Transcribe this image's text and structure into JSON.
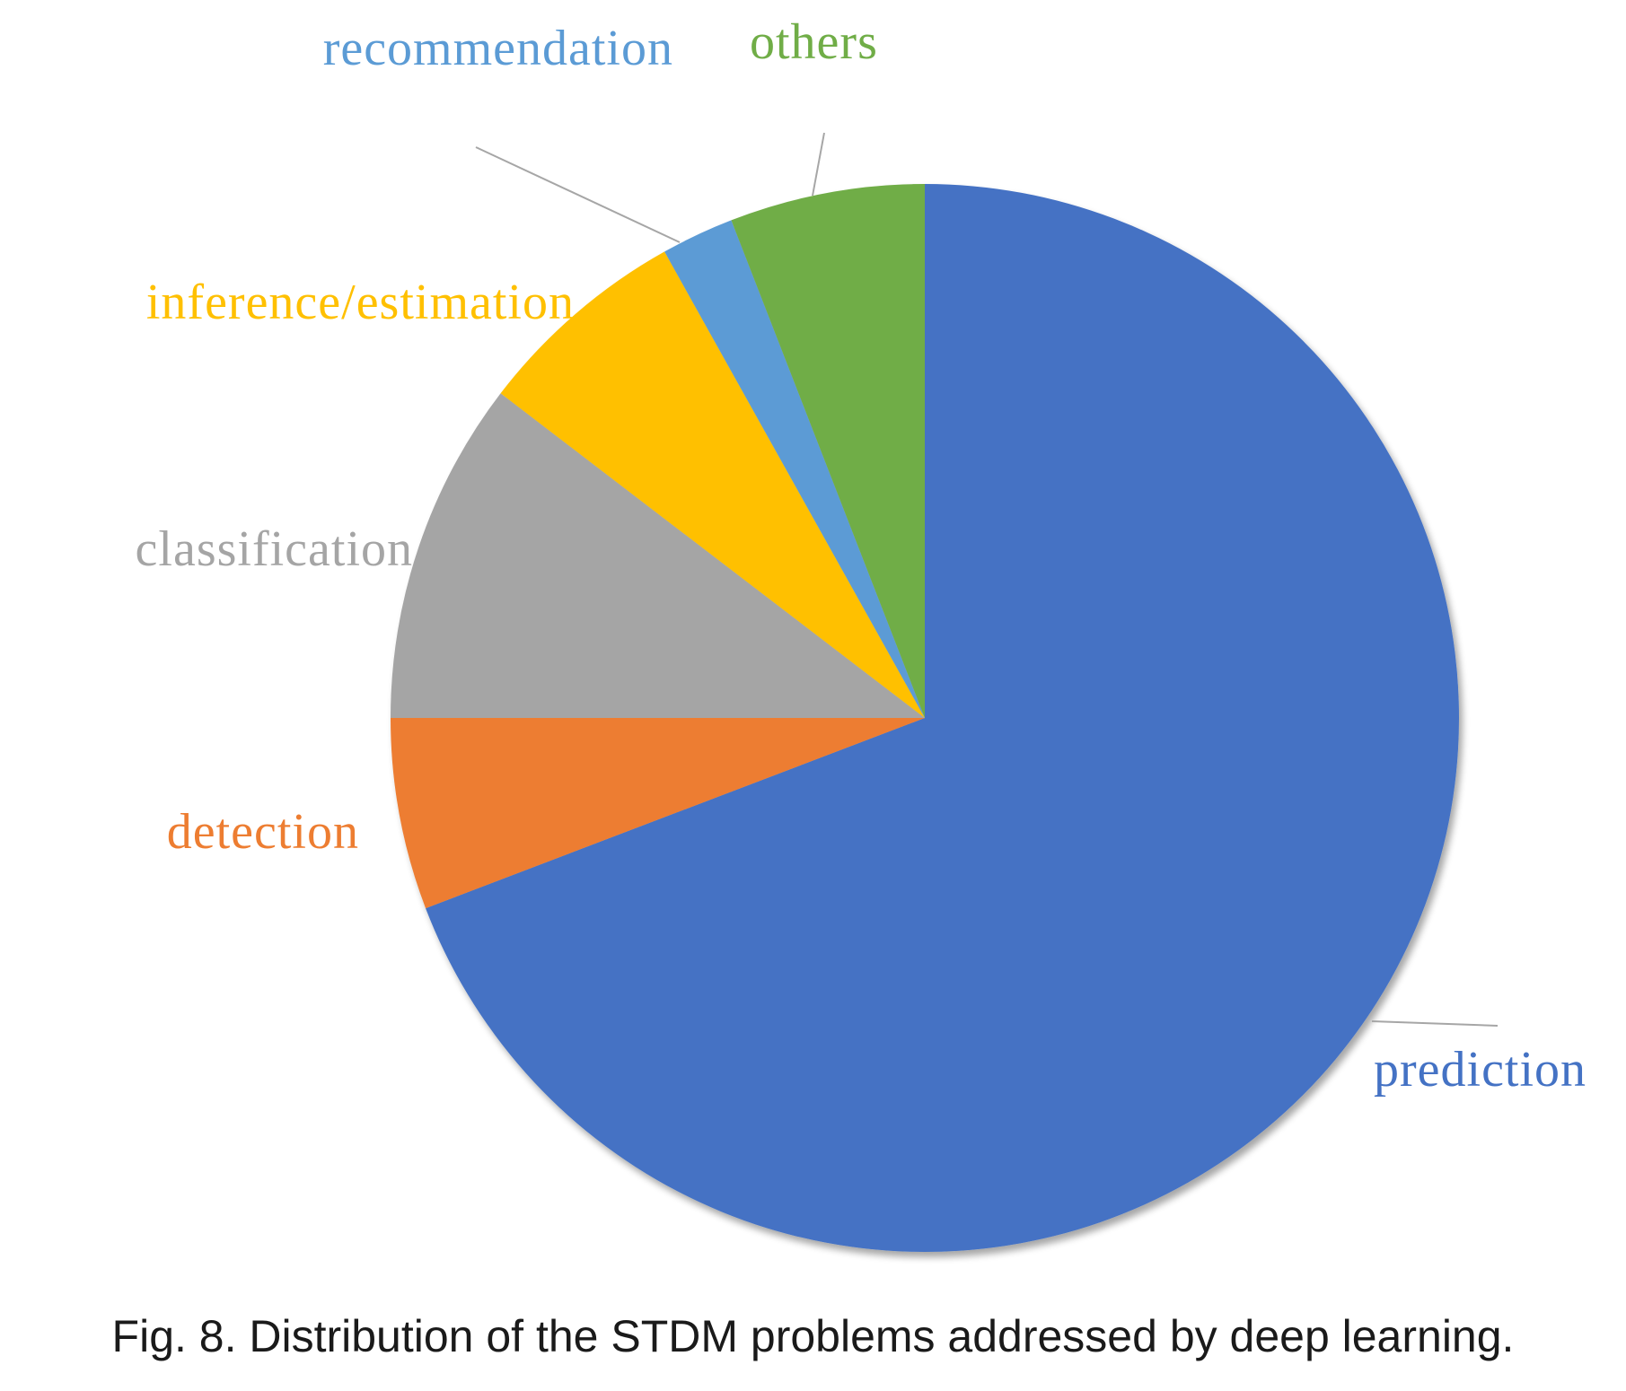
{
  "chart_data": {
    "type": "pie",
    "title": "",
    "start_angle_deg": 0,
    "direction": "clockwise",
    "slices": [
      {
        "label": "prediction",
        "value": 69.2,
        "color": "#4472C4"
      },
      {
        "label": "detection",
        "value": 5.8,
        "color": "#ED7D31"
      },
      {
        "label": "classification",
        "value": 10.4,
        "color": "#A5A5A5"
      },
      {
        "label": "inference/estimation",
        "value": 6.5,
        "color": "#FFC000"
      },
      {
        "label": "recommendation",
        "value": 2.2,
        "color": "#5B9BD5"
      },
      {
        "label": "others",
        "value": 5.9,
        "color": "#70AD47"
      }
    ],
    "legend": "none",
    "leader_line_color": "#A6A6A6"
  },
  "caption": "Fig. 8. Distribution of the STDM problems addressed by deep learning."
}
